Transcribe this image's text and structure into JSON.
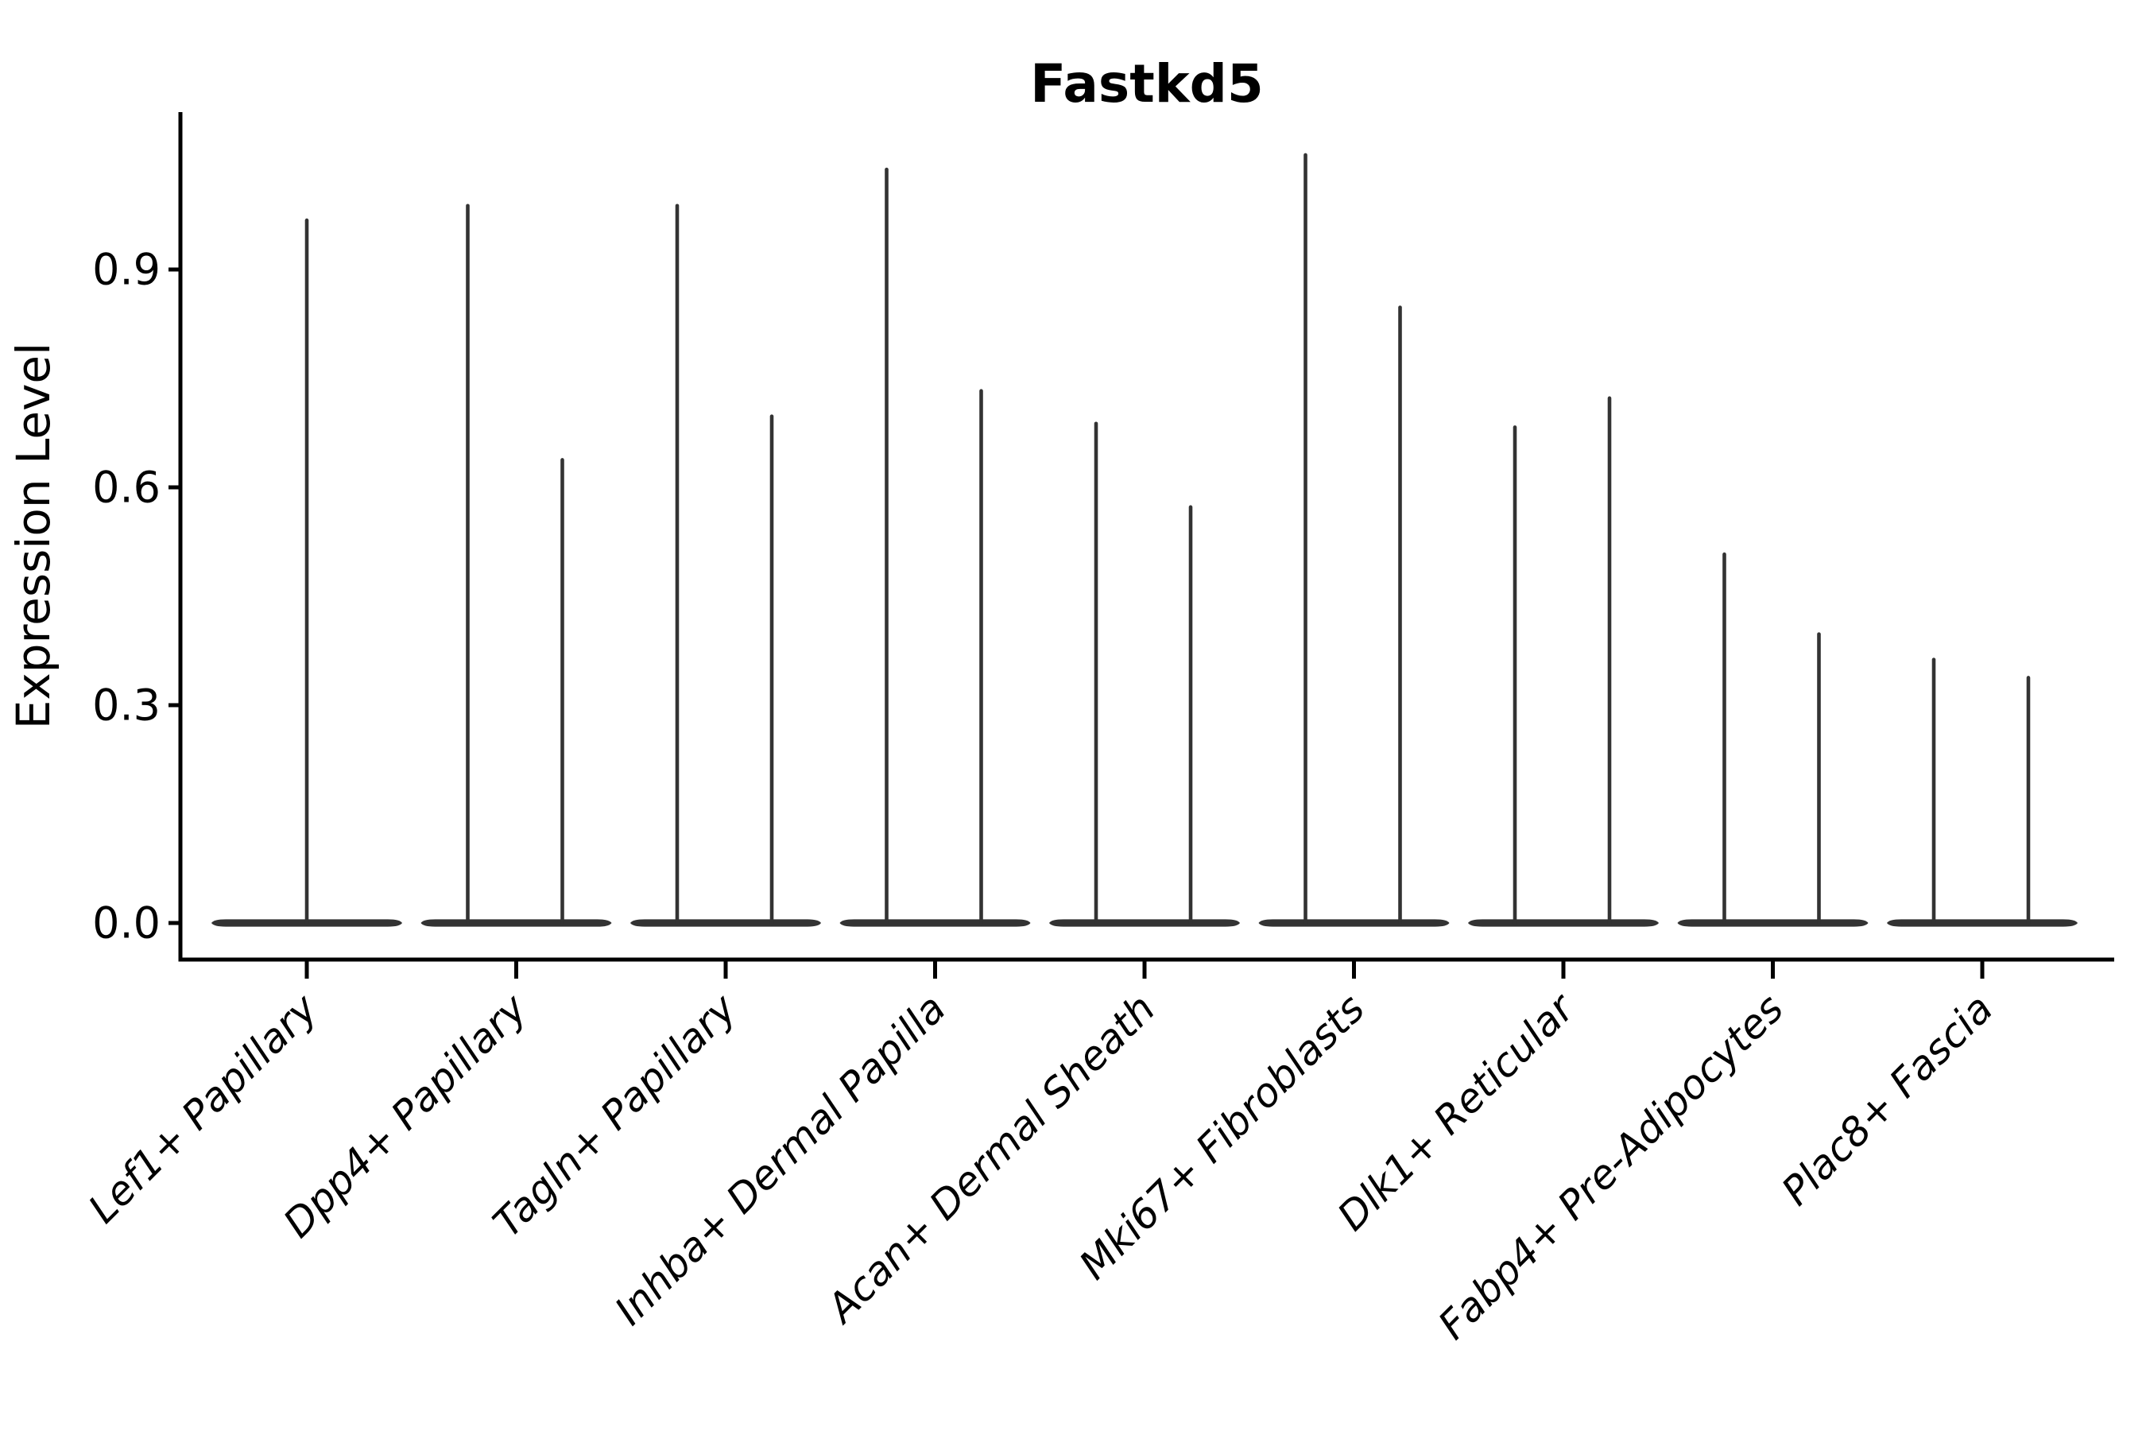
{
  "chart_data": {
    "type": "violin",
    "title": "Fastkd5",
    "xlabel": "",
    "ylabel": "Expression Level",
    "ytick_labels": [
      "0.0",
      "0.3",
      "0.6",
      "0.9"
    ],
    "ytick_values": [
      0.0,
      0.3,
      0.6,
      0.9
    ],
    "ylim": [
      -0.05,
      1.12
    ],
    "grid": false,
    "legend": "none",
    "categories": [
      "Lef1+ Papillary",
      "Dpp4+ Papillary",
      "Tagln+ Papillary",
      "Inhba+ Dermal Papilla",
      "Acan+ Dermal Sheath",
      "Mki67+ Fibroblasts",
      "Dlk1+ Reticular",
      "Fabp4+ Pre-Adipocytes",
      "Plac8+ Fascia"
    ],
    "violins": [
      {
        "category": "Lef1+ Papillary",
        "spike_max_values": [
          0.97
        ]
      },
      {
        "category": "Dpp4+ Papillary",
        "spike_max_values": [
          0.99,
          0.64
        ]
      },
      {
        "category": "Tagln+ Papillary",
        "spike_max_values": [
          0.99,
          0.7
        ]
      },
      {
        "category": "Inhba+ Dermal Papilla",
        "spike_max_values": [
          1.04,
          0.735
        ]
      },
      {
        "category": "Acan+ Dermal Sheath",
        "spike_max_values": [
          0.69,
          0.575
        ]
      },
      {
        "category": "Mki67+ Fibroblasts",
        "spike_max_values": [
          1.06,
          0.85
        ]
      },
      {
        "category": "Dlk1+ Reticular",
        "spike_max_values": [
          0.685,
          0.725
        ]
      },
      {
        "category": "Fabp4+ Pre-Adipocytes",
        "spike_max_values": [
          0.51,
          0.4
        ]
      },
      {
        "category": "Plac8+ Fascia",
        "spike_max_values": [
          0.365,
          0.34
        ]
      }
    ],
    "colors": {
      "violin": "#333333",
      "axis": "#000000",
      "text": "#000000",
      "background": "#ffffff"
    }
  }
}
